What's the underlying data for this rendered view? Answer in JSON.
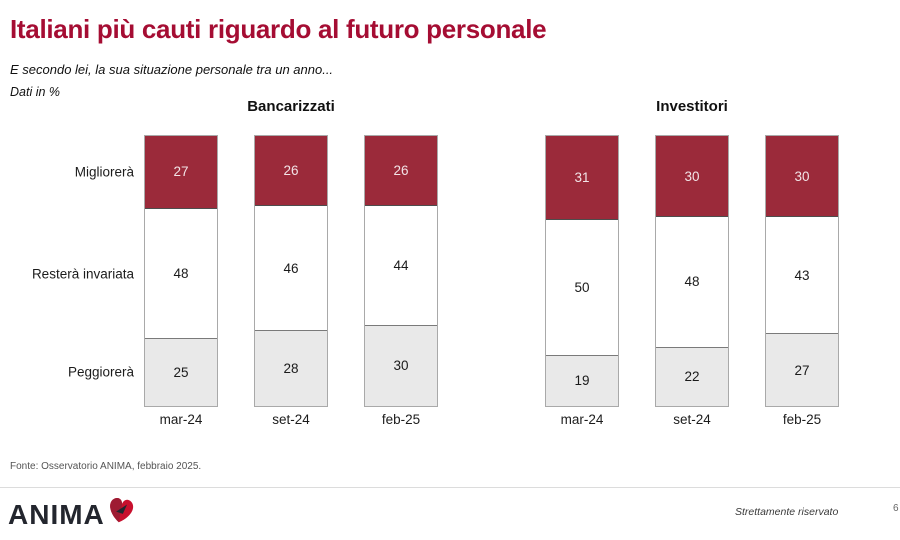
{
  "header": {
    "title": "Italiani più cauti riguardo al futuro personale",
    "subtitle": "E secondo lei, la sua situazione personale tra un anno...",
    "units_note": "Dati in %"
  },
  "chart_data": {
    "type": "bar",
    "stacked": true,
    "orientation": "vertical",
    "unit": "%",
    "ylim": [
      0,
      100
    ],
    "categories": [
      "mar-24",
      "set-24",
      "feb-25"
    ],
    "series_labels": [
      "Migliorerà",
      "Resterà invariata",
      "Peggiorerà"
    ],
    "series_colors": [
      "#9B2A3A",
      "#FFFFFF",
      "#E9E9E9"
    ],
    "value_label_colors": [
      "#F2E4E7",
      "#1A1A1A",
      "#1A1A1A"
    ],
    "groups": [
      {
        "title": "Bancarizzati",
        "series": [
          {
            "name": "Migliorerà",
            "values": [
              27,
              26,
              26
            ]
          },
          {
            "name": "Resterà invariata",
            "values": [
              48,
              46,
              44
            ]
          },
          {
            "name": "Peggiorerà",
            "values": [
              25,
              28,
              30
            ]
          }
        ]
      },
      {
        "title": "Investitori",
        "series": [
          {
            "name": "Migliorerà",
            "values": [
              31,
              30,
              30
            ]
          },
          {
            "name": "Resterà invariata",
            "values": [
              50,
              48,
              43
            ]
          },
          {
            "name": "Peggiorerà",
            "values": [
              19,
              22,
              27
            ]
          }
        ]
      }
    ]
  },
  "footer": {
    "source": "Fonte: Osservatorio ANIMA, febbraio 2025.",
    "confidential": "Strettamente riservato",
    "page_marker": "6"
  },
  "logo": {
    "text": "ANIMA",
    "heart_color": "#C8102E",
    "heart_dark": "#9E1B32",
    "accent_dark": "#232730"
  },
  "colors": {
    "title": "#A50D33",
    "bar_red": "#9B2A3A",
    "gray_segment": "#E9E9E9"
  }
}
